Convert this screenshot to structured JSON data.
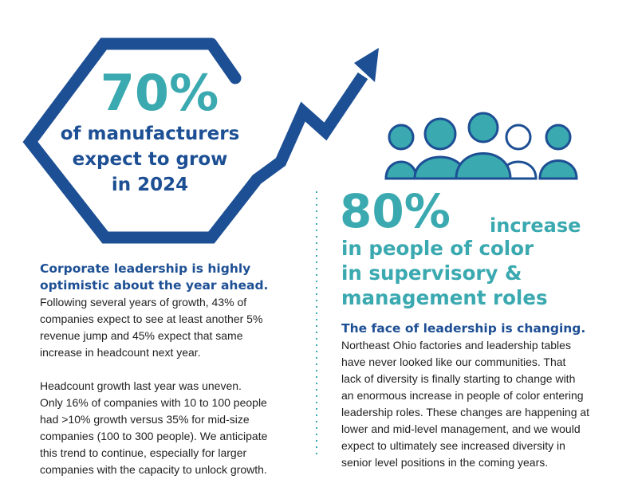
{
  "left": {
    "stat_value": "70%",
    "stat_caption_line1": "of manufacturers",
    "stat_caption_line2": "expect  to grow",
    "stat_caption_line3": "in 2024",
    "heading_line1": "Corporate leadership is highly",
    "heading_line2": "optimistic about the year ahead.",
    "paragraph1": [
      "Following several years of growth, 43% of",
      "companies expect to see at least another 5%",
      "revenue jump and 45% expect that same",
      "increase in headcount next year."
    ],
    "paragraph2": [
      "Headcount growth last year was uneven.",
      "Only 16% of companies with 10 to 100 people",
      "had >10% growth versus 35% for mid-size",
      "companies (100 to 300 people). We anticipate",
      "this trend to continue, especially for larger",
      "companies with the capacity to unlock growth."
    ]
  },
  "right": {
    "stat_value": "80%",
    "stat_word": "increase",
    "stat_caption_line1": "in people of color",
    "stat_caption_line2": "in supervisory &",
    "stat_caption_line3": "management roles",
    "heading": "The face of leadership is changing.",
    "paragraph": [
      "Northeast Ohio factories and leadership tables",
      "have never looked like our communities. That",
      "lack of diversity is finally starting to change with",
      "an enormous increase in people of color entering",
      "leadership roles. These changes are happening at",
      "lower and mid-level management, and we would",
      "expect to ultimately see increased diversity in",
      "senior level positions in the coming years."
    ]
  },
  "icons": {
    "hexagon": "hexagon-outline-icon",
    "arrow": "growth-arrow-icon",
    "people": "people-group-icon"
  },
  "colors": {
    "navy": "#1d4f94",
    "teal": "#3aa9b0",
    "text": "#222222"
  }
}
